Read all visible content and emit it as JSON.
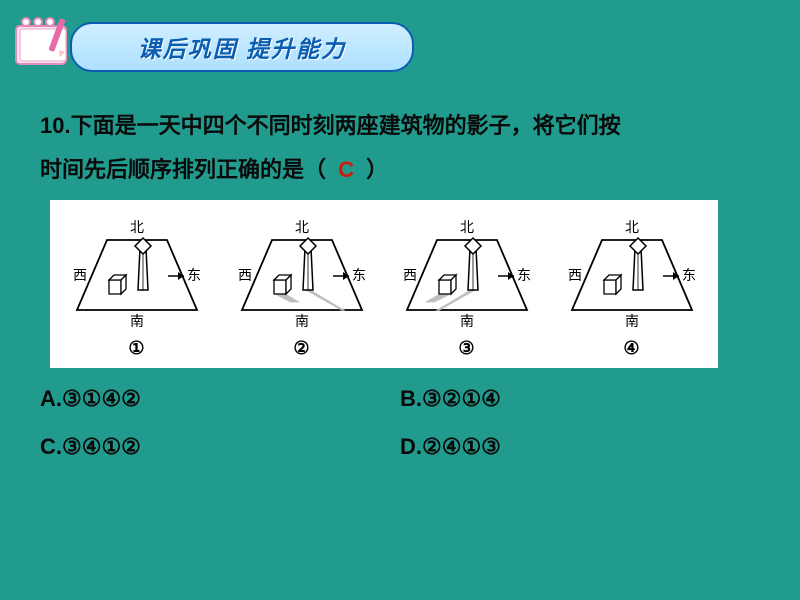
{
  "header": {
    "banner_text": "课后巩固 提升能力",
    "banner_bg_top": "#cfeeff",
    "banner_bg_bottom": "#aee0ff",
    "banner_border": "#0a5db0",
    "banner_text_color": "#0a5db0",
    "banner_fontsize": 23
  },
  "background_color": "#219b8e",
  "question": {
    "number": "10.",
    "line1": "10.下面是一天中四个不同时刻两座建筑物的影子，将它们按",
    "line2_prefix": "时间先后顺序排列正确的是（",
    "line2_suffix": "）",
    "answer": "C",
    "text_color": "#0a0a0a",
    "answer_color": "#d11a0a",
    "fontsize": 22
  },
  "figure": {
    "background": "#ffffff",
    "cardinal": {
      "north": "北",
      "south": "南",
      "east": "东",
      "west": "西"
    },
    "panels": [
      {
        "id": "①",
        "shadow_dir": "W",
        "shadow_len": 22
      },
      {
        "id": "②",
        "shadow_dir": "SE",
        "shadow_len": 34
      },
      {
        "id": "③",
        "shadow_dir": "SW",
        "shadow_len": 34
      },
      {
        "id": "④",
        "shadow_dir": "E",
        "shadow_len": 22
      }
    ],
    "stroke": "#000000",
    "shadow_fill": "#bfbfbf",
    "label_fontsize": 14
  },
  "options": {
    "A": "A.③①④②",
    "B": "B.③②①④",
    "C": "C.③④①②",
    "D": "D.②④①③",
    "fontsize": 22
  }
}
